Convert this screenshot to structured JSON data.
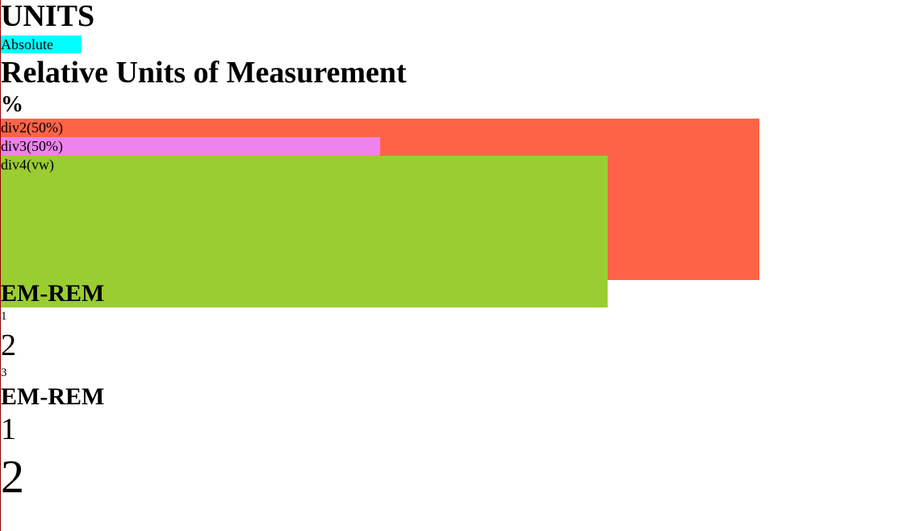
{
  "page": {
    "title": "UNITS",
    "absolute_label": "Absolute",
    "relative_title": "Relative Units of Measurement",
    "percent_title": "%",
    "div2_label": "div2(50%)",
    "div3_label": "div3(50%)",
    "div4_label": "div4(vw)",
    "em_rem_section_1": {
      "title": "EM-REM",
      "items": [
        "1",
        "2",
        "3"
      ]
    },
    "em_rem_section_2": {
      "title": "EM-REM",
      "items": [
        "1",
        "2"
      ]
    }
  },
  "colors": {
    "absolute_bg": "#00ffff",
    "div2_bg": "#ff6347",
    "div3_bg": "#ee82ee",
    "div4_bg": "#9acd32",
    "left_border": "#8b0000"
  }
}
